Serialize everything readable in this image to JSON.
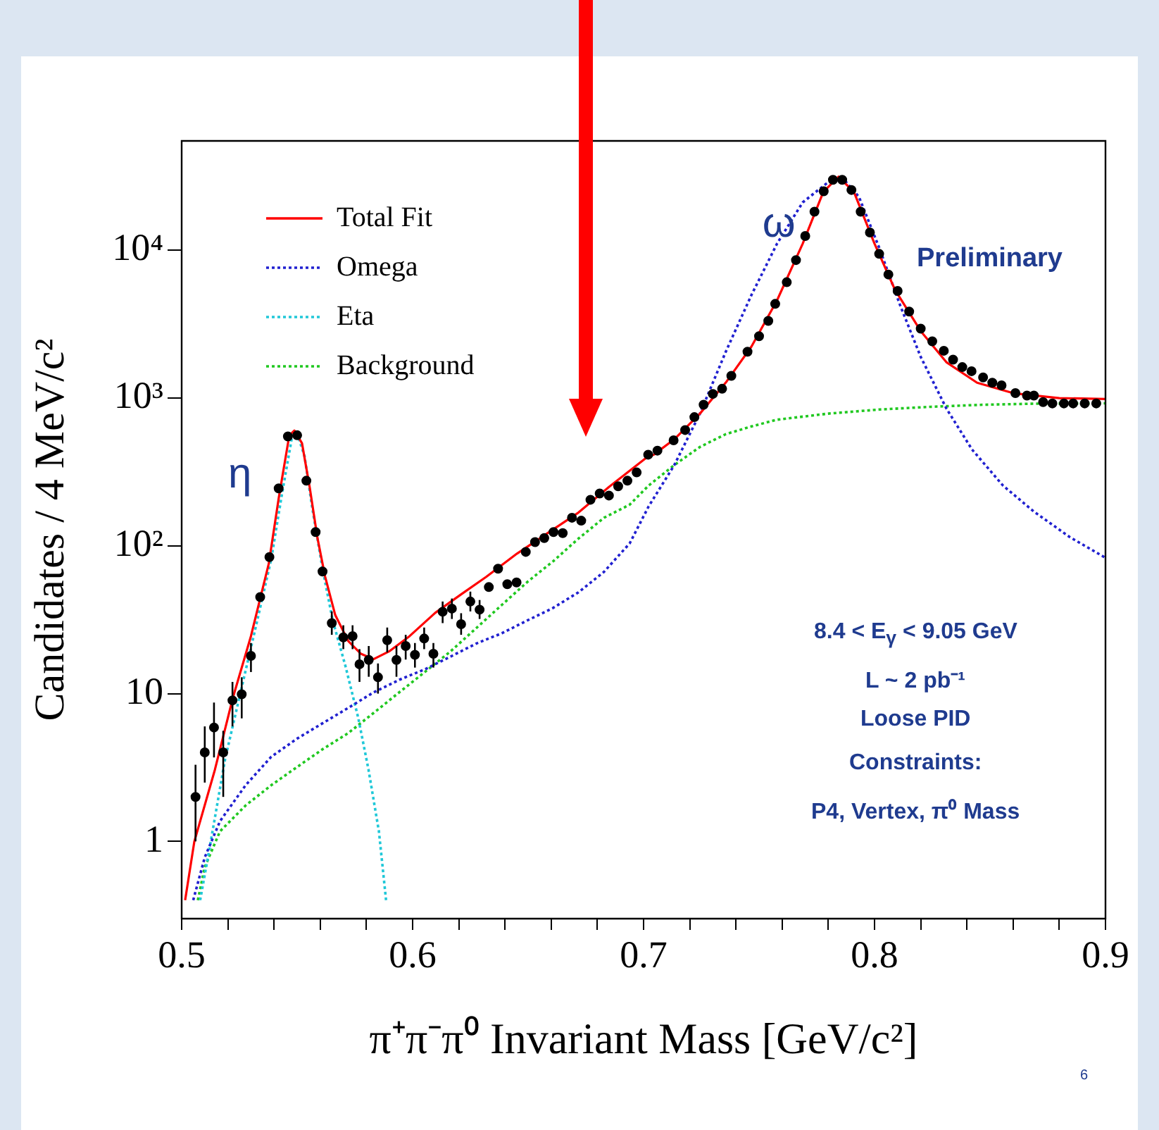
{
  "chart_data": {
    "type": "scatter",
    "xlabel": "π⁺π⁻π⁰ Invariant Mass [GeV/c²]",
    "ylabel": "Candidates / 4 MeV/c²",
    "xlim": [
      0.5,
      0.9
    ],
    "xticks": [
      0.5,
      {
        "value": 0.52,
        "label": null
      },
      {
        "value": 0.54,
        "label": null
      },
      {
        "value": 0.56,
        "label": null
      },
      {
        "value": 0.58,
        "label": null
      },
      0.6,
      {
        "value": 0.62,
        "label": null
      },
      {
        "value": 0.64,
        "label": null
      },
      {
        "value": 0.66,
        "label": null
      },
      {
        "value": 0.68,
        "label": null
      },
      0.7,
      {
        "value": 0.72,
        "label": null
      },
      {
        "value": 0.74,
        "label": null
      },
      {
        "value": 0.76,
        "label": null
      },
      {
        "value": 0.78,
        "label": null
      },
      0.8,
      {
        "value": 0.82,
        "label": null
      },
      {
        "value": 0.84,
        "label": null
      },
      {
        "value": 0.86,
        "label": null
      },
      {
        "value": 0.88,
        "label": null
      },
      0.9
    ],
    "ylim": [
      0.3,
      55000
    ],
    "yticks": [
      1,
      10,
      {
        "value": 100,
        "label": "10²"
      },
      {
        "value": 1000,
        "label": "10³"
      },
      {
        "value": 10000,
        "label": "10⁴"
      }
    ],
    "log": "y",
    "grid": false,
    "legend": "top left",
    "series": [
      {
        "name": "Total Fit",
        "type": "line",
        "line_style": "solid",
        "color": "#ff0000",
        "x": [
          0.5015,
          0.5055,
          0.5144,
          0.5222,
          0.53,
          0.5377,
          0.5421,
          0.5466,
          0.5488,
          0.5521,
          0.5554,
          0.5588,
          0.5621,
          0.5665,
          0.5721,
          0.5776,
          0.5831,
          0.5898,
          0.5987,
          0.6098,
          0.6208,
          0.6319,
          0.6452,
          0.6585,
          0.6718,
          0.6851,
          0.7007,
          0.7044,
          0.7133,
          0.7244,
          0.7356,
          0.7467,
          0.7578,
          0.7689,
          0.7778,
          0.7844,
          0.7911,
          0.8,
          0.8089,
          0.82,
          0.8311,
          0.8444,
          0.86,
          0.88,
          0.9
        ],
        "values": [
          0.4,
          1.0,
          3.06,
          9.4,
          24.5,
          75.5,
          214,
          558,
          603,
          495,
          251,
          113,
          62,
          34,
          22.7,
          18.6,
          17.1,
          19.3,
          24.5,
          35.2,
          46.7,
          61.7,
          88.6,
          122,
          168,
          251,
          389,
          414,
          526,
          785,
          1273,
          2230,
          4590,
          11100,
          24800,
          31500,
          24800,
          11100,
          5390,
          2840,
          1750,
          1270,
          1080,
          1000,
          985
        ]
      },
      {
        "name": "Omega",
        "type": "line",
        "line_style": "dotted",
        "color": "#2020d0",
        "x": [
          0.505,
          0.51,
          0.5166,
          0.5277,
          0.5388,
          0.5499,
          0.561,
          0.5721,
          0.5831,
          0.5942,
          0.6053,
          0.6164,
          0.6275,
          0.6386,
          0.6497,
          0.6608,
          0.6718,
          0.6829,
          0.694,
          0.7022,
          0.7133,
          0.7244,
          0.7356,
          0.7467,
          0.7578,
          0.7689,
          0.78,
          0.7867,
          0.7933,
          0.8022,
          0.8111,
          0.82,
          0.8311,
          0.8422,
          0.8556,
          0.8689,
          0.8844,
          0.9
        ],
        "values": [
          0.4,
          0.78,
          1.37,
          2.4,
          3.74,
          4.95,
          6.3,
          8.0,
          10.2,
          12.4,
          14.6,
          17.8,
          21.8,
          25.6,
          31.3,
          38,
          48.5,
          66.8,
          104,
          185,
          352,
          785,
          2060,
          4980,
          11100,
          21100,
          29000,
          30200,
          22900,
          10240,
          4240,
          1900,
          851,
          449,
          256,
          171,
          115,
          83
        ]
      },
      {
        "name": "Eta",
        "type": "line",
        "line_style": "dotted",
        "color": "#20c8d8",
        "x": [
          0.508,
          0.5122,
          0.5188,
          0.5255,
          0.5322,
          0.5388,
          0.5432,
          0.5477,
          0.5499,
          0.5532,
          0.5565,
          0.561,
          0.5654,
          0.571,
          0.5765,
          0.5809,
          0.5854,
          0.5885
        ],
        "values": [
          0.4,
          0.92,
          3.6,
          10.2,
          28.8,
          81.6,
          214,
          537,
          582,
          405,
          182,
          70,
          31.3,
          15.2,
          6.8,
          3.06,
          1.17,
          0.4
        ]
      },
      {
        "name": "Background",
        "type": "line",
        "line_style": "dotted",
        "color": "#20c820",
        "x": [
          0.507,
          0.51,
          0.5166,
          0.5277,
          0.5388,
          0.5499,
          0.561,
          0.5721,
          0.5831,
          0.5942,
          0.6053,
          0.6164,
          0.6275,
          0.6386,
          0.6497,
          0.6608,
          0.6718,
          0.6829,
          0.694,
          0.7022,
          0.7133,
          0.7244,
          0.7356,
          0.7467,
          0.7578,
          0.78,
          0.8022,
          0.8244,
          0.8467,
          0.8689,
          0.9
        ],
        "values": [
          0.4,
          0.67,
          1.17,
          1.75,
          2.4,
          3.18,
          4.2,
          5.4,
          7.4,
          10.2,
          14,
          19.3,
          27.7,
          39.8,
          57,
          78.5,
          112,
          155,
          190,
          256,
          352,
          467,
          570,
          643,
          714,
          785,
          837,
          873,
          901,
          916,
          922
        ]
      },
      {
        "type": "scatter",
        "marker": "circle",
        "color": "#000000",
        "x": [
          0.506,
          0.51,
          0.514,
          0.518,
          0.522,
          0.526,
          0.53,
          0.534,
          0.538,
          0.542,
          0.546,
          0.55,
          0.554,
          0.558,
          0.561,
          0.565,
          0.57,
          0.574,
          0.577,
          0.581,
          0.585,
          0.589,
          0.593,
          0.597,
          0.601,
          0.605,
          0.609,
          0.613,
          0.617,
          0.621,
          0.625,
          0.629,
          0.633,
          0.637,
          0.641,
          0.645,
          0.649,
          0.653,
          0.657,
          0.661,
          0.665,
          0.669,
          0.673,
          0.677,
          0.681,
          0.685,
          0.689,
          0.693,
          0.697,
          0.702,
          0.706,
          0.713,
          0.718,
          0.722,
          0.726,
          0.73,
          0.734,
          0.738,
          0.745,
          0.75,
          0.754,
          0.757,
          0.762,
          0.766,
          0.77,
          0.774,
          0.778,
          0.782,
          0.786,
          0.79,
          0.794,
          0.798,
          0.802,
          0.806,
          0.81,
          0.815,
          0.82,
          0.825,
          0.83,
          0.834,
          0.838,
          0.842,
          0.847,
          0.851,
          0.855,
          0.861,
          0.866,
          0.869,
          0.873,
          0.877,
          0.882,
          0.886,
          0.891,
          0.896
        ],
        "values": [
          2.0,
          4.0,
          5.9,
          4.0,
          9.0,
          9.9,
          18,
          45,
          84,
          245,
          550,
          560,
          276,
          124,
          67,
          30,
          24,
          24.5,
          15.8,
          16.9,
          12.9,
          23,
          16.9,
          21,
          18.3,
          23.6,
          18.6,
          35.8,
          37.6,
          29.5,
          42,
          37,
          52.6,
          70,
          55,
          56.5,
          91,
          106,
          113,
          124,
          122,
          155,
          148,
          205,
          226,
          219,
          253,
          276,
          314,
          414,
          441,
          518,
          608,
          743,
          902,
          1067,
          1156,
          1413,
          2060,
          2620,
          3330,
          4340,
          6080,
          8590,
          12500,
          18250,
          25100,
          30000,
          30000,
          25600,
          18250,
          13200,
          9460,
          6860,
          5310,
          3850,
          2950,
          2420,
          2090,
          1820,
          1620,
          1520,
          1380,
          1270,
          1220,
          1080,
          1040,
          1040,
          940,
          920,
          920,
          920,
          920,
          920
        ],
        "errors": [
          [
            1.0,
            3.3
          ],
          [
            2.5,
            6.0
          ],
          [
            3.7,
            8.7
          ],
          [
            2.0,
            5.6
          ],
          [
            6.0,
            12
          ],
          [
            6.8,
            12.9
          ],
          [
            14,
            22
          ],
          null,
          null,
          null,
          null,
          null,
          null,
          null,
          null,
          [
            25,
            36
          ],
          [
            20,
            29
          ],
          [
            20,
            29
          ],
          [
            12,
            20
          ],
          [
            13,
            21
          ],
          [
            10,
            16
          ],
          [
            19,
            28
          ],
          [
            13,
            21
          ],
          [
            17,
            25
          ],
          [
            15,
            22
          ],
          [
            20,
            28
          ],
          [
            15,
            22
          ],
          [
            30,
            42
          ],
          [
            32,
            44
          ],
          [
            25,
            35
          ],
          [
            36,
            49
          ],
          [
            32,
            43
          ],
          null,
          null,
          null,
          null,
          null,
          null,
          null,
          null,
          null,
          null,
          null,
          null,
          null,
          null,
          null,
          null,
          null,
          null,
          null,
          null,
          null,
          null,
          null,
          null,
          null,
          null,
          null,
          null,
          null,
          null,
          null,
          null,
          null,
          null,
          null,
          null,
          null,
          null,
          null,
          null,
          null,
          null,
          null,
          null,
          null,
          null,
          null,
          null,
          null,
          null,
          null,
          null,
          null,
          null,
          null,
          null,
          null,
          null,
          null,
          null,
          null,
          null
        ]
      }
    ],
    "annotations": [
      {
        "text": "η",
        "x": 0.55,
        "y": 600
      },
      {
        "text": "ω",
        "x": 0.785,
        "y": 30000
      },
      "Preliminary",
      "8.4 < E$_{γ}$ < 9.05 GeV",
      "L ~ 2 pb⁻¹",
      "Loose PID",
      "Constraints:",
      "P4, Vertex, π⁰ Mass",
      "6"
    ]
  }
}
